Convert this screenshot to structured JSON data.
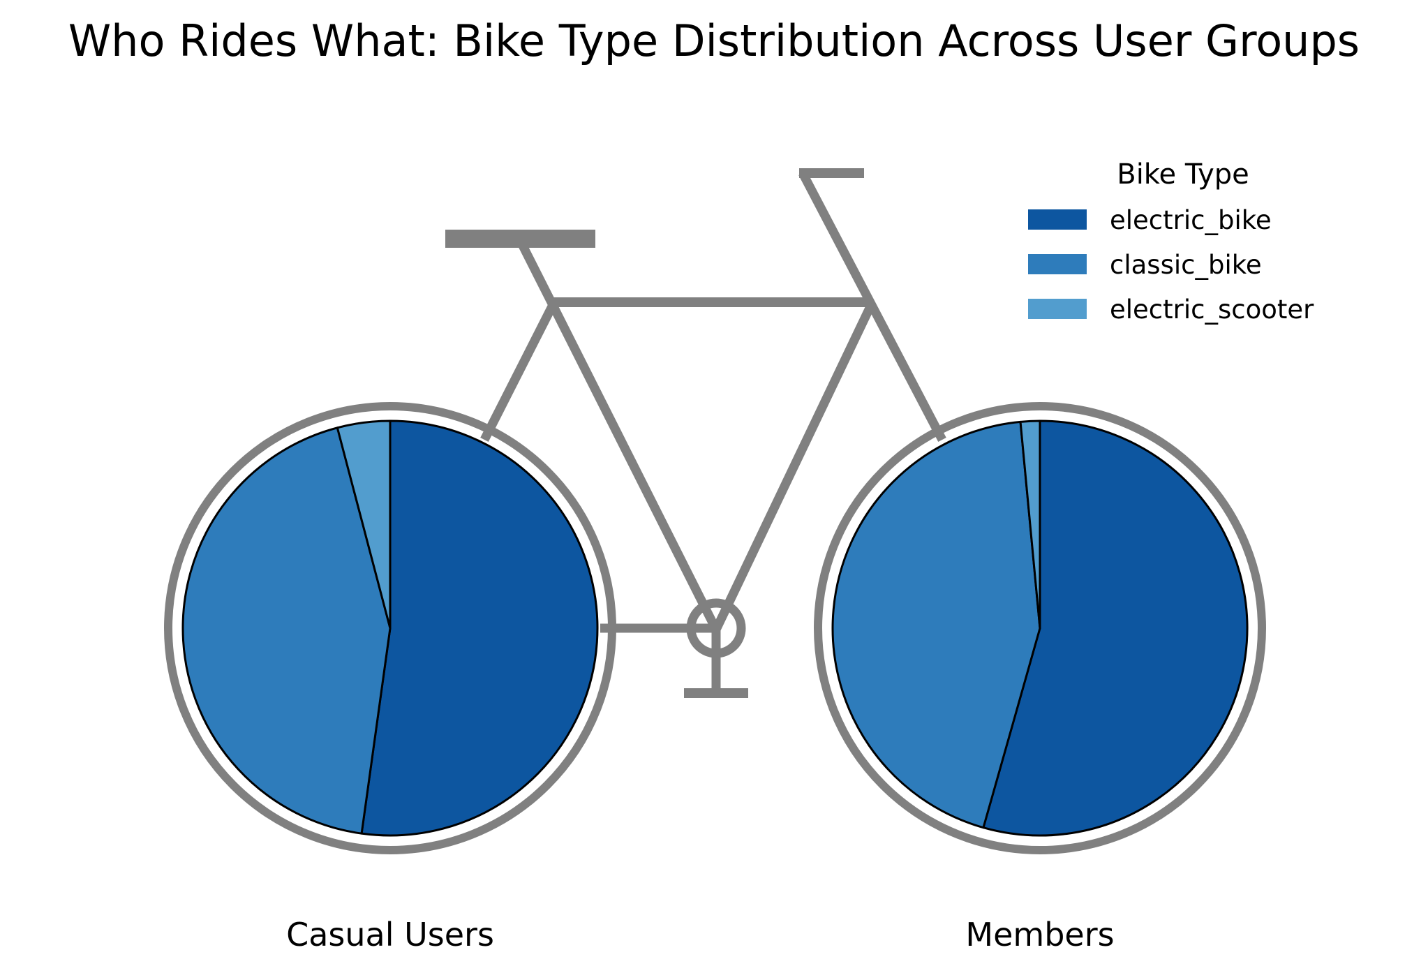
{
  "chart_data": {
    "type": "pie",
    "title": "Who Rides What: Bike Type Distribution Across User Groups",
    "legend": {
      "title": "Bike Type",
      "placement": "top-right",
      "entries": [
        "electric_bike",
        "classic_bike",
        "electric_scooter"
      ]
    },
    "colors": {
      "electric_bike": "#0d56a0",
      "classic_bike": "#2e7cbb",
      "electric_scooter": "#529dce",
      "frame": "#808080",
      "slice_edge": "#000000"
    },
    "categories": [
      "electric_bike",
      "classic_bike",
      "electric_scooter"
    ],
    "series": [
      {
        "name": "Casual Users",
        "values": [
          52.2,
          43.7,
          4.1
        ]
      },
      {
        "name": "Members",
        "values": [
          54.4,
          44.1,
          1.5
        ]
      }
    ]
  }
}
